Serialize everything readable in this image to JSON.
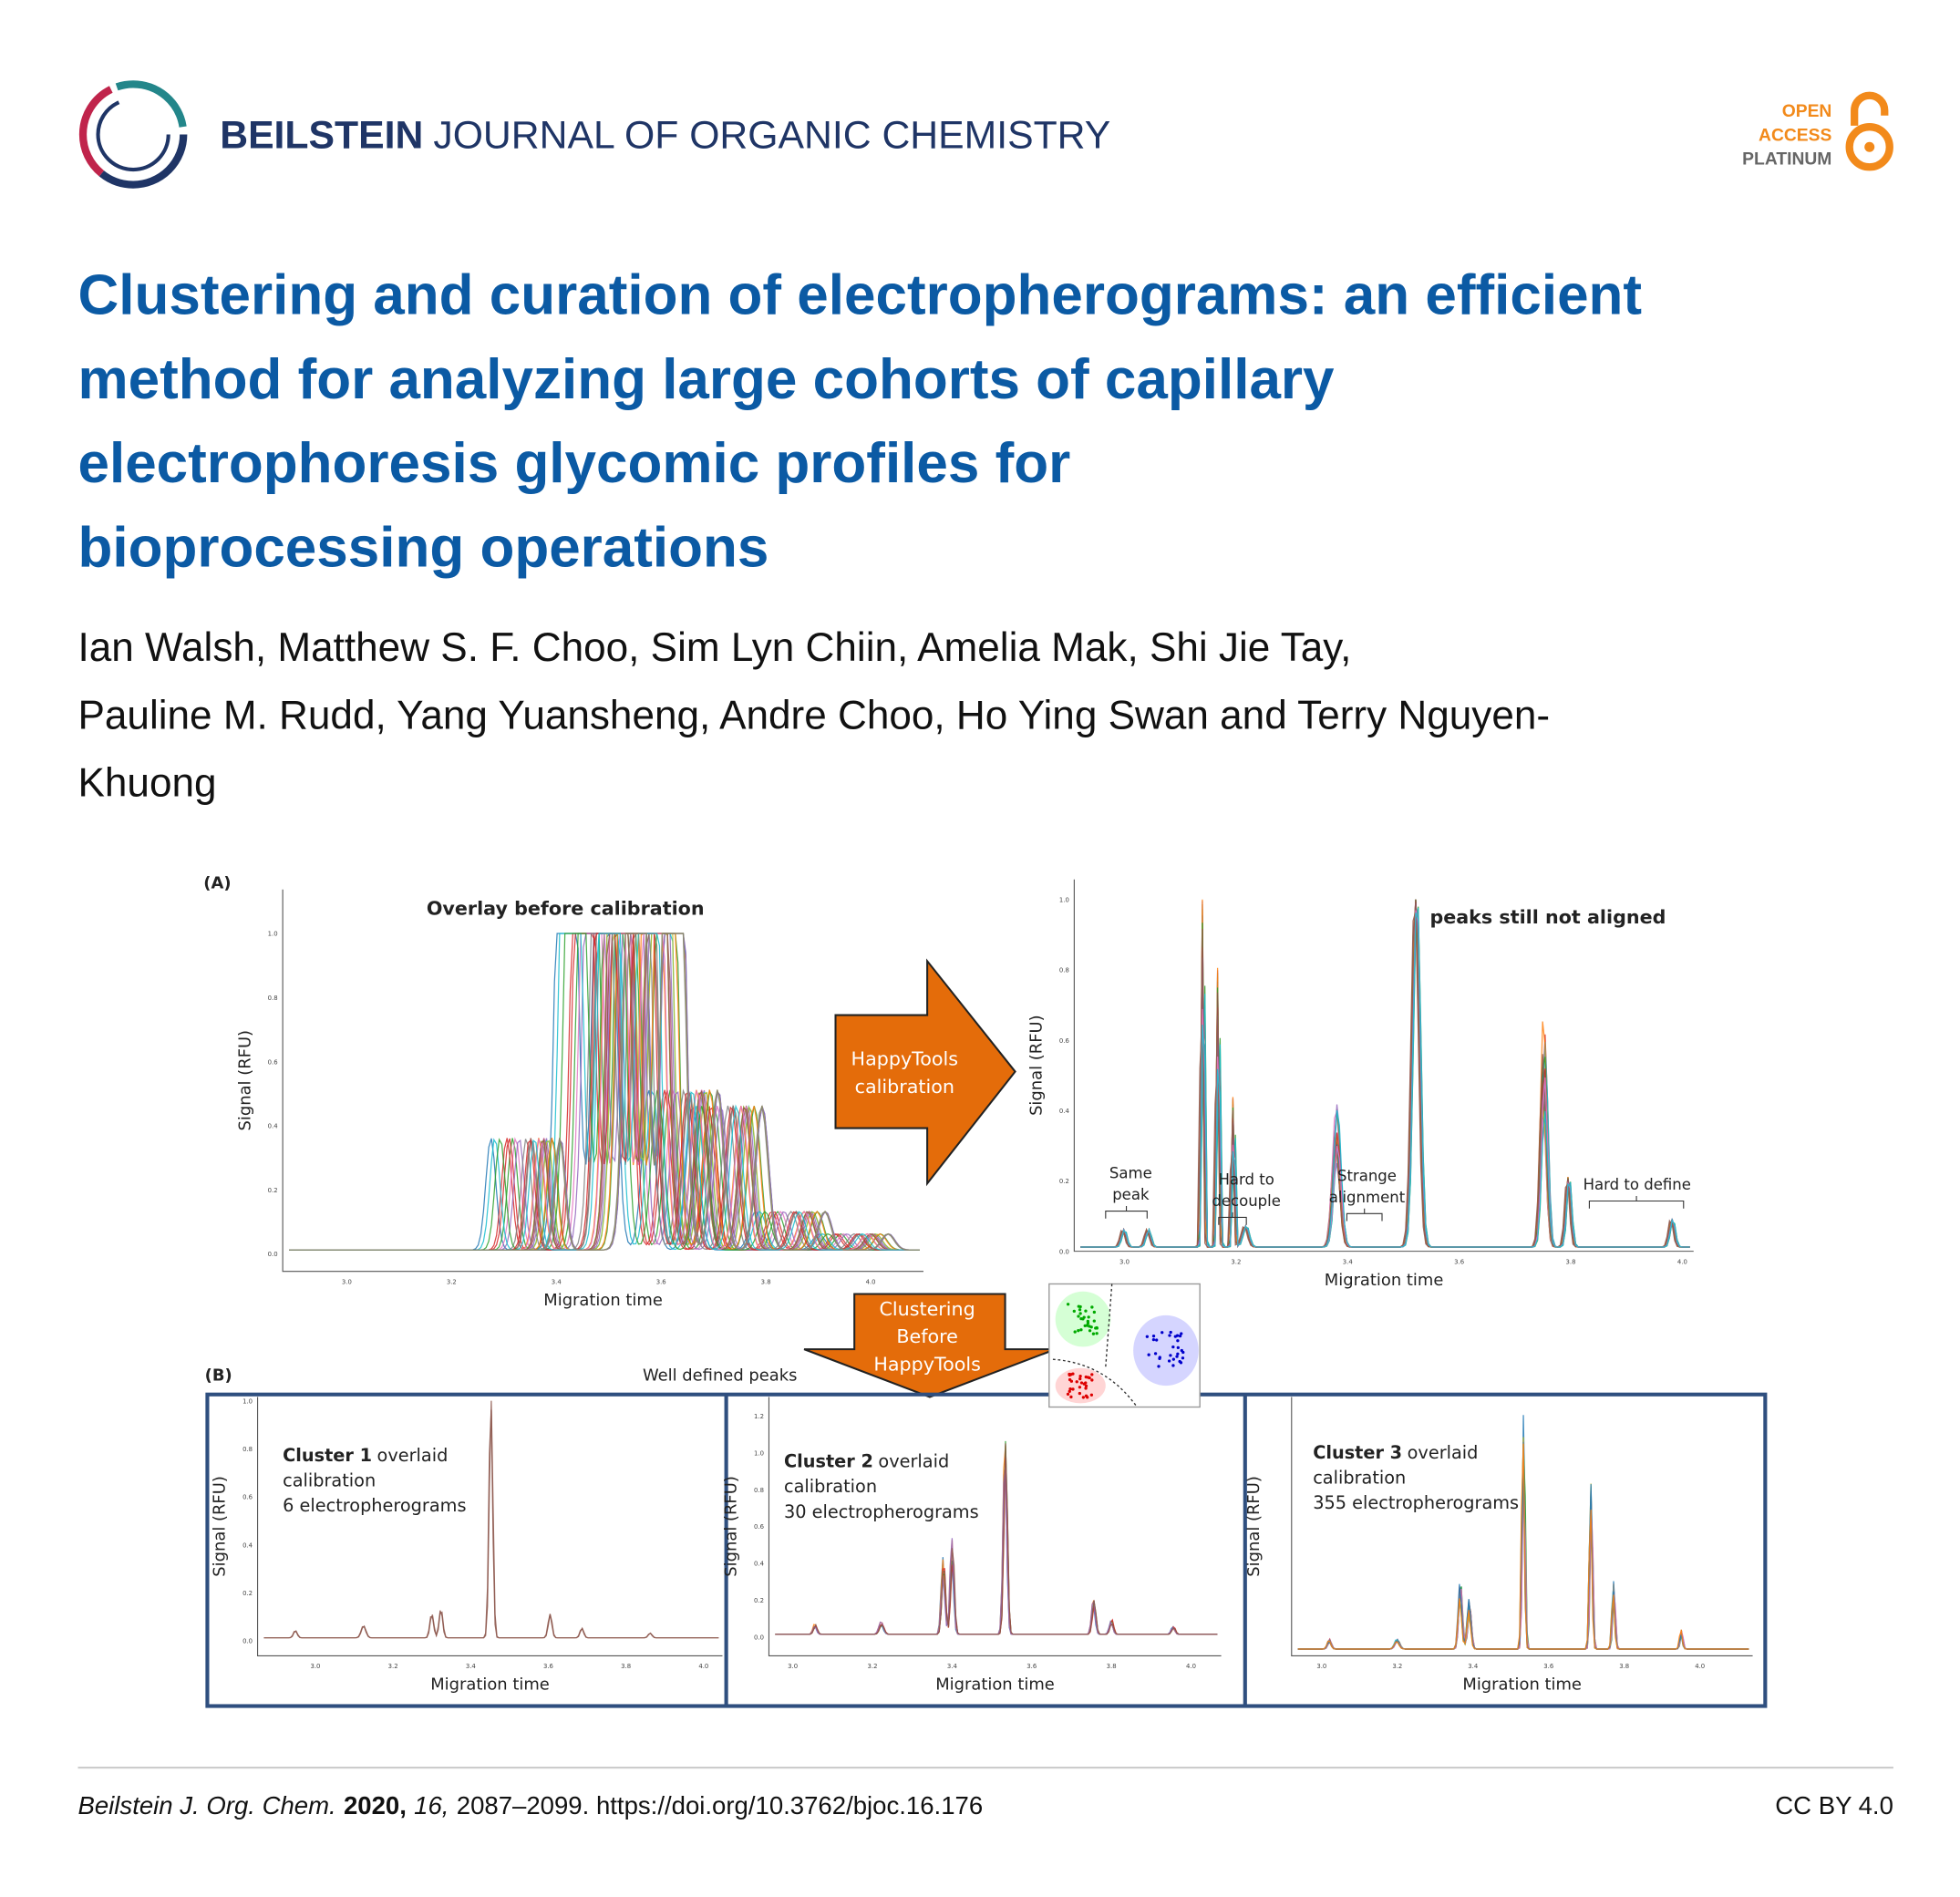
{
  "header": {
    "journal_bold": "BEILSTEIN",
    "journal_rest": "JOURNAL OF ORGANIC CHEMISTRY",
    "badge": [
      "OPEN",
      "ACCESS",
      "PLATINUM"
    ]
  },
  "article": {
    "title_lines": [
      "Clustering and curation of electropherograms: an efficient",
      "method for analyzing large cohorts of capillary",
      "electrophoresis glycomic profiles for",
      "bioprocessing operations"
    ],
    "author_lines": [
      "Ian Walsh, Matthew S. F. Choo, Sim Lyn Chiin, Amelia Mak, Shi Jie Tay,",
      "Pauline M. Rudd, Yang Yuansheng, Andre Choo, Ho Ying Swan and Terry Nguyen-",
      "Khuong"
    ]
  },
  "figure": {
    "panel_a_label": "(A)",
    "before": {
      "title": "Overlay before calibration",
      "y_label": "Signal (RFU)",
      "x_label": "Migration time",
      "xticks": [
        "3.0",
        "3.2",
        "3.4",
        "3.6",
        "3.8",
        "4.0"
      ],
      "yticks": [
        "0.0",
        "0.2",
        "0.4",
        "0.6",
        "0.8",
        "1.0"
      ]
    },
    "arrow_label": [
      "HappyTools",
      "calibration"
    ],
    "after": {
      "title": "peaks still not aligned",
      "y_label": "Signal (RFU)",
      "x_label": "Migration time",
      "xticks": [
        "3.0",
        "3.2",
        "3.4",
        "3.6",
        "3.8",
        "4.0"
      ],
      "yticks": [
        "0.0",
        "0.2",
        "0.4",
        "0.6",
        "0.8",
        "1.0"
      ],
      "annotations": [
        [
          "Same",
          "peak"
        ],
        [
          "Hard to",
          "decouple"
        ],
        [
          "Strange",
          "alignment"
        ],
        [
          "Hard to define"
        ]
      ]
    },
    "clustering_label": [
      "Clustering",
      "Before",
      "HappyTools"
    ],
    "panel_b_label": "(B)",
    "well_defined": "Well defined peaks",
    "clusters": [
      {
        "name": "Cluster 1",
        "rest": "overlaid",
        "lines": [
          "calibration",
          "6 electropherograms"
        ],
        "y_label": "Signal (RFU)",
        "x_label": "Migration time",
        "xticks": [
          "3.0",
          "3.2",
          "3.4",
          "3.6",
          "3.8",
          "4.0"
        ],
        "yticks": [
          "0.0",
          "0.2",
          "0.4",
          "0.6",
          "0.8",
          "1.0"
        ]
      },
      {
        "name": "Cluster 2",
        "rest": "overlaid",
        "lines": [
          "calibration",
          "30 electropherograms"
        ],
        "y_label": "Signal (RFU)",
        "x_label": "Migration time",
        "xticks": [
          "3.0",
          "3.2",
          "3.4",
          "3.6",
          "3.8",
          "4.0"
        ],
        "yticks": [
          "0.0",
          "0.2",
          "0.4",
          "0.6",
          "0.8",
          "1.0",
          "1.2"
        ]
      },
      {
        "name": "Cluster 3",
        "rest": "overlaid",
        "lines": [
          "calibration",
          "355 electropherograms"
        ],
        "y_label": "Signal (RFU)",
        "x_label": "Migration time",
        "xticks": [
          "3.0",
          "3.2",
          "3.4",
          "3.6",
          "3.8",
          "4.0"
        ],
        "yticks": []
      }
    ]
  },
  "footer": {
    "journal": "Beilstein J. Org. Chem.",
    "year": "2020,",
    "volume": "16,",
    "pages_doi": "2087–2099. https://doi.org/10.3762/bjoc.16.176",
    "license": "CC BY 4.0"
  }
}
